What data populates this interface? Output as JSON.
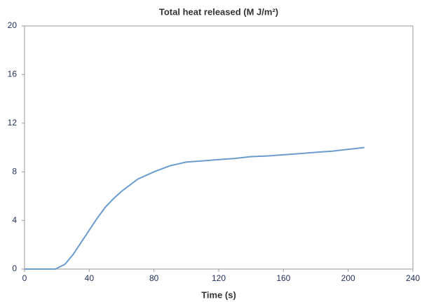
{
  "chart_data": {
    "type": "line",
    "title": "Total heat released (M J/m²)",
    "x_label": "Time (s)",
    "x": [
      0,
      10,
      19,
      25,
      30,
      35,
      40,
      45,
      50,
      55,
      60,
      65,
      70,
      80,
      90,
      100,
      110,
      120,
      130,
      140,
      150,
      160,
      170,
      180,
      190,
      200,
      210
    ],
    "series": [
      {
        "name": "Total heat released",
        "color": "#6a9ccf",
        "values": [
          0,
          0,
          0,
          0.4,
          1.2,
          2.2,
          3.2,
          4.2,
          5.1,
          5.8,
          6.4,
          6.9,
          7.4,
          8.0,
          8.5,
          8.8,
          8.9,
          9.0,
          9.1,
          9.25,
          9.3,
          9.4,
          9.5,
          9.6,
          9.7,
          9.85,
          10.0
        ]
      }
    ],
    "xlim": [
      0,
      240
    ],
    "xticks": [
      0,
      40,
      80,
      120,
      160,
      200,
      240
    ],
    "ylim": [
      0,
      20
    ],
    "yticks": [
      0,
      4,
      8,
      12,
      16,
      20
    ],
    "grid": false
  }
}
